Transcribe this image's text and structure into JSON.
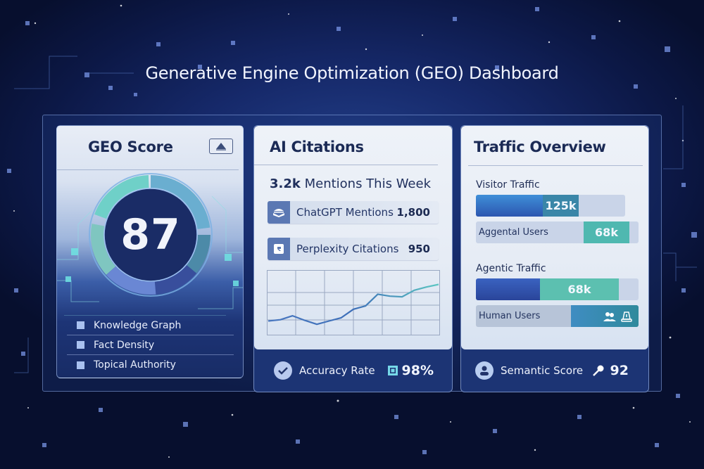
{
  "page": {
    "title": "Generative Engine Optimization (GEO) Dashboard"
  },
  "geo_score": {
    "title": "GEO Score",
    "collapse_icon": "triangle-up-icon",
    "score": "87",
    "factors": [
      {
        "label": "Knowledge Graph"
      },
      {
        "label": "Fact Density"
      },
      {
        "label": "Topical Authority"
      }
    ],
    "colors": {
      "ring_teal": "#6fd0c8",
      "ring_blue": "#5d7cc9",
      "disc": "#1a2c66"
    }
  },
  "ai_citations": {
    "title": "AI Citations",
    "mentions_value": "3.2k",
    "mentions_label": "Mentions This Week",
    "sources": [
      {
        "label": "ChatGPT Mentions",
        "value": "1,800",
        "icon": "stacked-layers-icon"
      },
      {
        "label": "Perplexity Citations",
        "value": "950",
        "icon": "perplexity-icon"
      }
    ],
    "footer": {
      "label": "Accuracy Rate",
      "value": "98%",
      "icon": "checkmark-icon"
    }
  },
  "traffic": {
    "title": "Traffic Overview",
    "visitor_section": "Visitor Traffic",
    "visitor_bar_value": "125k",
    "aggental_label": "Aggental Users",
    "aggental_value": "68k",
    "agentic_section": "Agentic Traffic",
    "agentic_bar_value": "68k",
    "human_label": "Human Users",
    "footer": {
      "label": "Semantic Score",
      "value": "92",
      "icon": "user-icon"
    }
  },
  "chart_data": {
    "type": "line",
    "title": "",
    "xlabel": "",
    "ylabel": "",
    "grid": true,
    "x": [
      0,
      1,
      2,
      3,
      4,
      5,
      6,
      7,
      8,
      9,
      10,
      11,
      12,
      13,
      14
    ],
    "values": [
      22,
      24,
      30,
      23,
      17,
      22,
      27,
      40,
      45,
      63,
      60,
      59,
      69,
      74,
      78
    ],
    "ylim": [
      0,
      100
    ]
  }
}
